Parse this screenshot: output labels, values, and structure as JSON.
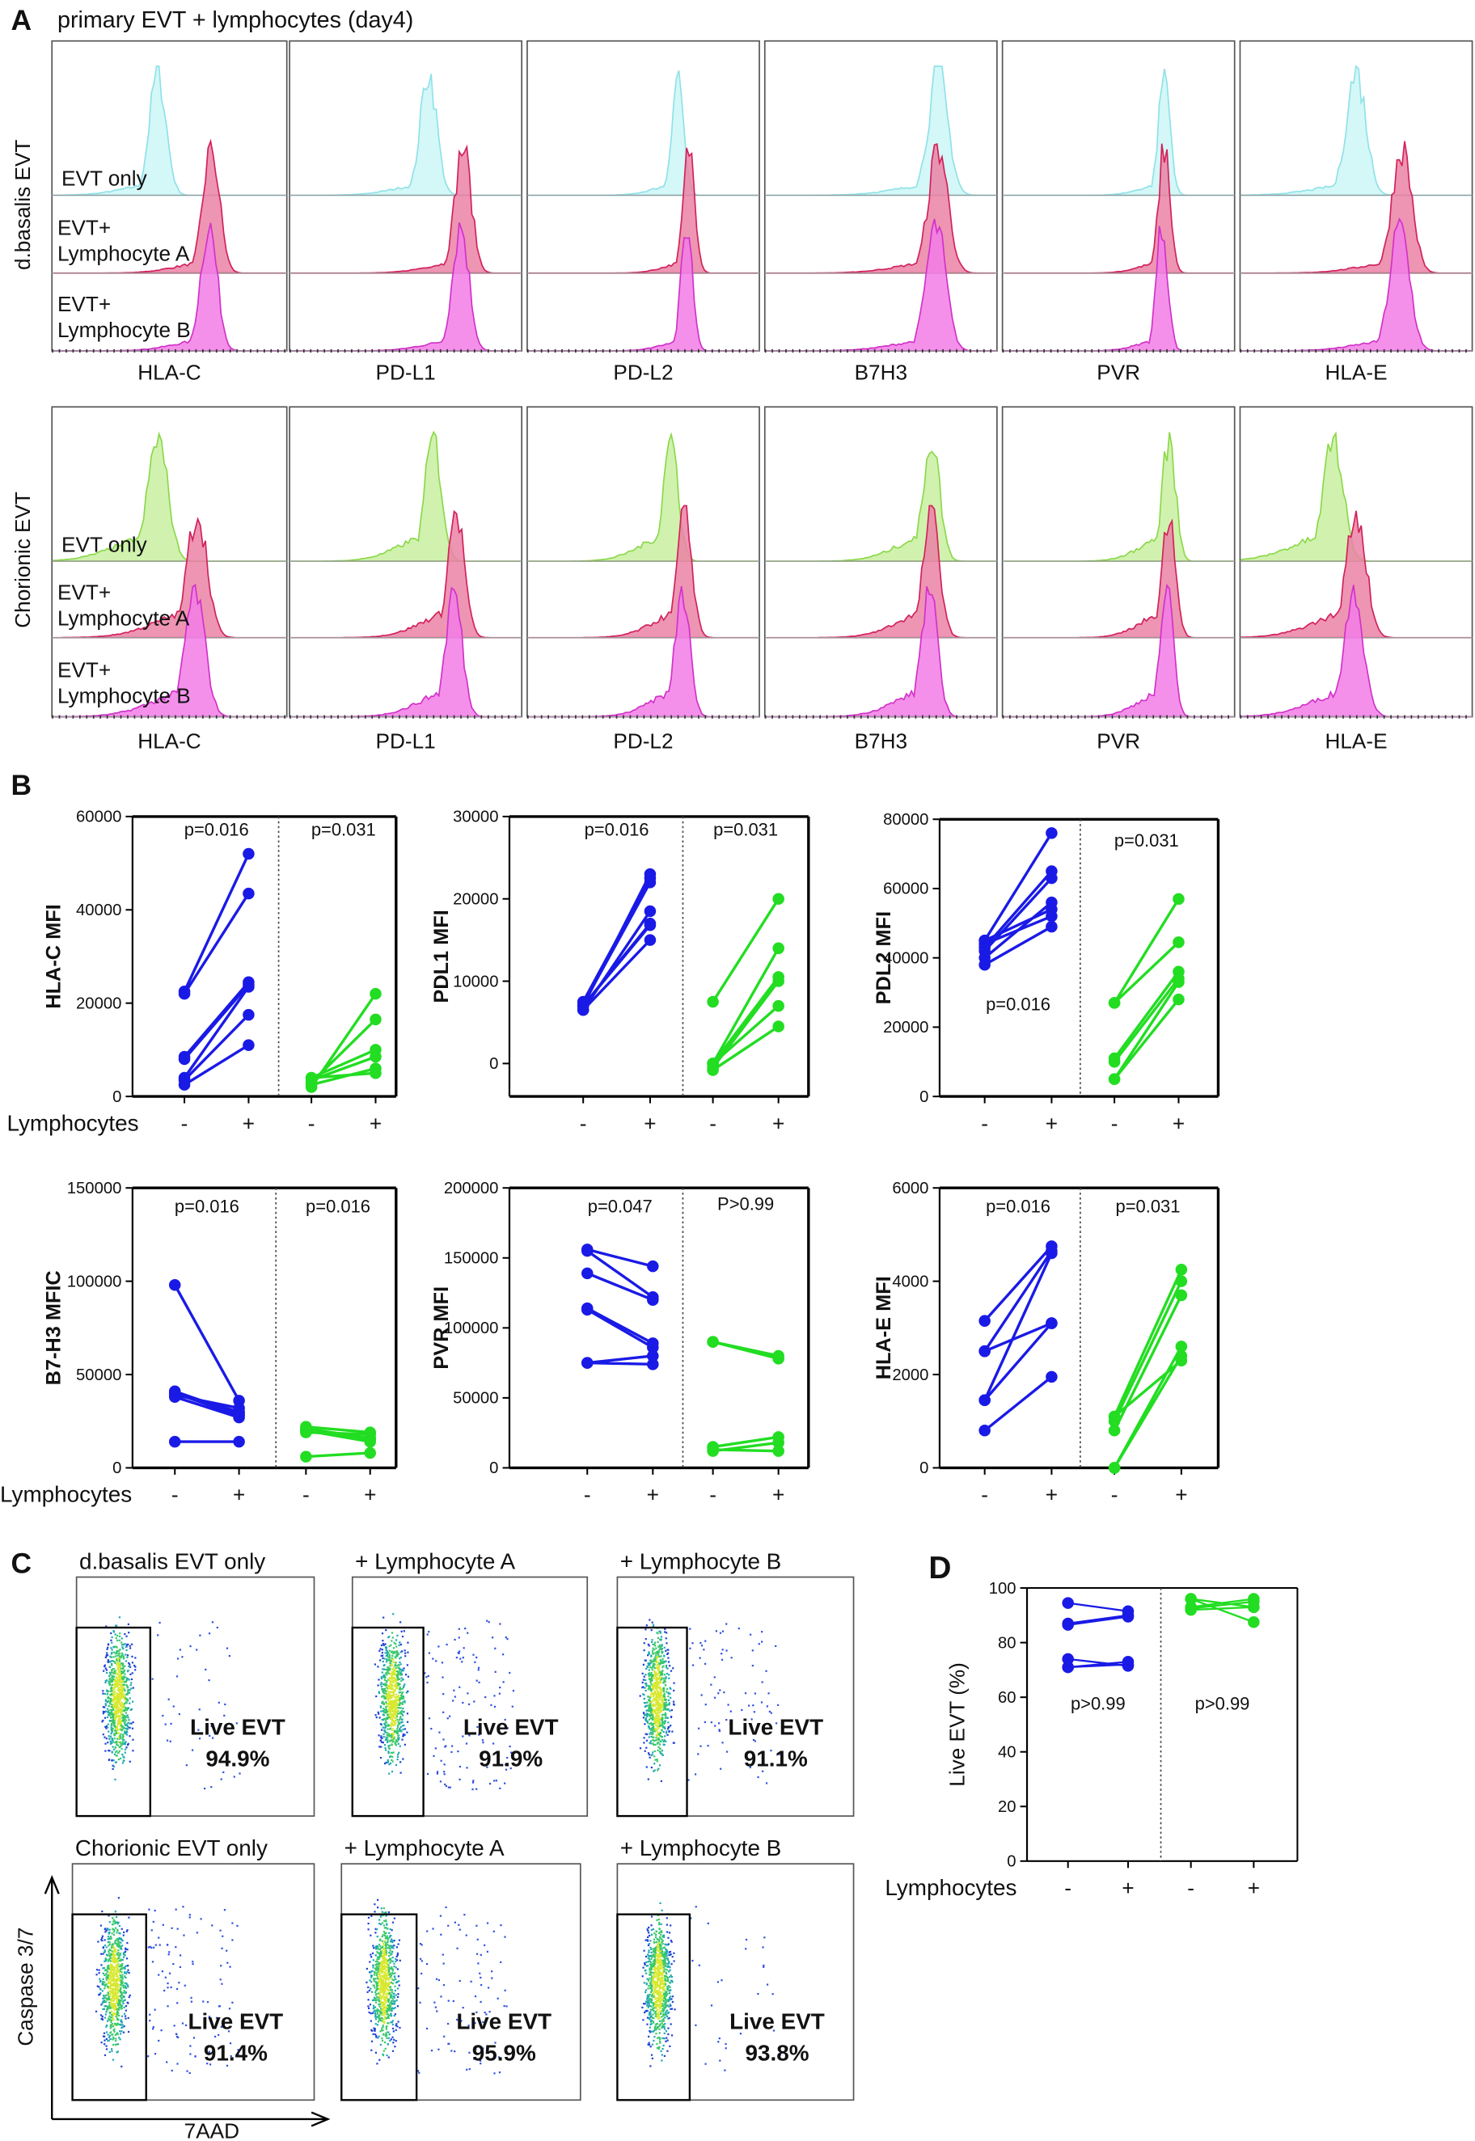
{
  "panel_labels": {
    "a": "A",
    "b": "B",
    "c": "C",
    "d": "D"
  },
  "panel_a": {
    "title": "primary EVT + lymphocytes (day4)",
    "rows": [
      {
        "label": "d.basalis EVT",
        "conditions": [
          [
            "EVT only"
          ],
          [
            "EVT+",
            "Lymphocyte A"
          ],
          [
            "EVT+",
            "Lymphocyte B"
          ]
        ],
        "markers": [
          "HLA-C",
          "PD-L1",
          "PD-L2",
          "B7H3",
          "PVR",
          "HLA-E"
        ]
      },
      {
        "label": "Chorionic EVT",
        "conditions": [
          [
            "EVT only"
          ],
          [
            "EVT+",
            "Lymphocyte A"
          ],
          [
            "EVT+",
            "Lymphocyte B"
          ]
        ],
        "markers": [
          "HLA-C",
          "PD-L1",
          "PD-L2",
          "B7H3",
          "PVR",
          "HLA-E"
        ]
      }
    ]
  },
  "chart_data": [
    {
      "type": "line",
      "ylabel": "HLA-C MFI",
      "xlabel": "Lymphocytes",
      "categories": [
        "-",
        "+",
        "-",
        "+"
      ],
      "ylim": [
        0,
        60000
      ],
      "yticks": [
        0,
        20000,
        40000,
        60000
      ],
      "annotations": [
        "p=0.016",
        "p=0.031"
      ],
      "groups": [
        {
          "color": "#1a1ae6",
          "values": [
            [
              22500,
              52000
            ],
            [
              22000,
              43500
            ],
            [
              8500,
              24500
            ],
            [
              8000,
              24000
            ],
            [
              4000,
              23500
            ],
            [
              3500,
              17500
            ],
            [
              2500,
              11000
            ]
          ]
        },
        {
          "color": "#22dd22",
          "values": [
            [
              2000,
              22000
            ],
            [
              3000,
              16500
            ],
            [
              4000,
              10000
            ],
            [
              3500,
              8500
            ],
            [
              2500,
              6000
            ],
            [
              4000,
              5000
            ]
          ]
        }
      ]
    },
    {
      "type": "line",
      "ylabel": "PDL1 MFI",
      "categories": [
        "-",
        "+",
        "-",
        "+"
      ],
      "ylim": [
        -4000,
        30000
      ],
      "yticks": [
        0,
        10000,
        20000,
        30000
      ],
      "annotations": [
        "p=0.016",
        "p=0.031"
      ],
      "groups": [
        {
          "color": "#1a1ae6",
          "values": [
            [
              7500,
              22500
            ],
            [
              7000,
              23000
            ],
            [
              7200,
              22000
            ],
            [
              6500,
              18500
            ],
            [
              7000,
              17000
            ],
            [
              7000,
              16800
            ],
            [
              6500,
              15000
            ]
          ]
        },
        {
          "color": "#22dd22",
          "values": [
            [
              7500,
              20000
            ],
            [
              0,
              14000
            ],
            [
              0,
              10500
            ],
            [
              -500,
              10000
            ],
            [
              0,
              7000
            ],
            [
              -800,
              4500
            ]
          ]
        }
      ]
    },
    {
      "type": "line",
      "ylabel": "PDL2 MFI",
      "categories": [
        "-",
        "+",
        "-",
        "+"
      ],
      "ylim": [
        0,
        80000
      ],
      "yticks": [
        0,
        20000,
        40000,
        60000,
        80000
      ],
      "annotations": [
        "p=0.016",
        "p=0.031"
      ],
      "groups": [
        {
          "color": "#1a1ae6",
          "values": [
            [
              45000,
              76000
            ],
            [
              43000,
              65000
            ],
            [
              42000,
              63000
            ],
            [
              40000,
              56000
            ],
            [
              45000,
              54000
            ],
            [
              44000,
              52000
            ],
            [
              38000,
              49000
            ]
          ]
        },
        {
          "color": "#22dd22",
          "values": [
            [
              27000,
              57000
            ],
            [
              27000,
              44500
            ],
            [
              11000,
              36000
            ],
            [
              10000,
              34000
            ],
            [
              5000,
              33000
            ],
            [
              5000,
              28000
            ]
          ]
        }
      ]
    },
    {
      "type": "line",
      "ylabel": "B7-H3 MFIC",
      "xlabel": "Lymphocytes",
      "categories": [
        "-",
        "+",
        "-",
        "+"
      ],
      "ylim": [
        0,
        150000
      ],
      "yticks": [
        0,
        50000,
        100000,
        150000
      ],
      "annotations": [
        "p=0.016",
        "p=0.016"
      ],
      "groups": [
        {
          "color": "#1a1ae6",
          "values": [
            [
              98000,
              36000
            ],
            [
              41000,
              29000
            ],
            [
              40000,
              30000
            ],
            [
              40000,
              28000
            ],
            [
              39000,
              32000
            ],
            [
              38000,
              27000
            ],
            [
              14000,
              14000
            ]
          ]
        },
        {
          "color": "#22dd22",
          "values": [
            [
              22000,
              19000
            ],
            [
              21000,
              16000
            ],
            [
              20000,
              14000
            ],
            [
              20000,
              15000
            ],
            [
              19000,
              18000
            ],
            [
              6000,
              8000
            ]
          ]
        }
      ]
    },
    {
      "type": "line",
      "ylabel": "PVR MFI",
      "categories": [
        "-",
        "+",
        "-",
        "+"
      ],
      "ylim": [
        0,
        200000
      ],
      "yticks": [
        0,
        50000,
        100000,
        150000,
        200000
      ],
      "annotations": [
        "p=0.047",
        "P>0.99"
      ],
      "groups": [
        {
          "color": "#1a1ae6",
          "values": [
            [
              156000,
              144000
            ],
            [
              155000,
              122000
            ],
            [
              139000,
              120000
            ],
            [
              114000,
              89000
            ],
            [
              113000,
              86000
            ],
            [
              75000,
              80000
            ],
            [
              75000,
              74000
            ]
          ]
        },
        {
          "color": "#22dd22",
          "values": [
            [
              90000,
              80000
            ],
            [
              90000,
              78000
            ],
            [
              15000,
              22000
            ],
            [
              12000,
              18000
            ],
            [
              13000,
              12000
            ]
          ]
        }
      ]
    },
    {
      "type": "line",
      "ylabel": "HLA-E MFI",
      "categories": [
        "-",
        "+",
        "-",
        "+"
      ],
      "ylim": [
        0,
        6000
      ],
      "yticks": [
        0,
        2000,
        4000,
        6000
      ],
      "annotations": [
        "p=0.016",
        "p=0.031"
      ],
      "groups": [
        {
          "color": "#1a1ae6",
          "values": [
            [
              3150,
              4750
            ],
            [
              2500,
              4650
            ],
            [
              1450,
              4600
            ],
            [
              2500,
              3100
            ],
            [
              1450,
              3100
            ],
            [
              800,
              1950
            ]
          ]
        },
        {
          "color": "#22dd22",
          "values": [
            [
              1100,
              4250
            ],
            [
              1000,
              4000
            ],
            [
              800,
              3700
            ],
            [
              0,
              2600
            ],
            [
              0,
              2400
            ],
            [
              1100,
              2300
            ]
          ]
        }
      ]
    },
    {
      "type": "line",
      "ylabel": "Live EVT (%)",
      "xlabel": "Lymphocytes",
      "categories": [
        "-",
        "+",
        "-",
        "+"
      ],
      "ylim": [
        0,
        100
      ],
      "yticks": [
        0,
        20,
        40,
        60,
        80,
        100
      ],
      "annotations": [
        "p>0.99",
        "p>0.99"
      ],
      "groups": [
        {
          "color": "#1a1ae6",
          "values": [
            [
              94.5,
              91.5
            ],
            [
              86.5,
              89.5
            ],
            [
              87,
              90
            ],
            [
              74,
              71.5
            ],
            [
              71,
              73
            ],
            [
              71,
              72
            ]
          ]
        },
        {
          "color": "#22dd22",
          "values": [
            [
              96,
              93
            ],
            [
              92.5,
              95
            ],
            [
              93,
              96
            ],
            [
              96,
              87.5
            ],
            [
              92,
              93
            ]
          ]
        }
      ]
    }
  ],
  "panel_c": {
    "y_axis": "Caspase 3/7",
    "x_axis": "7AAD",
    "plots": [
      {
        "title": "d.basalis EVT only",
        "gate": "Live EVT",
        "percent": "94.9%"
      },
      {
        "title": "+  Lymphocyte A",
        "gate": "Live EVT",
        "percent": "91.9%"
      },
      {
        "title": "+ Lymphocyte B",
        "gate": "Live EVT",
        "percent": "91.1%"
      },
      {
        "title": "Chorionic EVT only",
        "gate": "Live EVT",
        "percent": "91.4%"
      },
      {
        "title": "+  Lymphocyte A",
        "gate": "Live EVT",
        "percent": "95.9%"
      },
      {
        "title": "+ Lymphocyte B",
        "gate": "Live EVT",
        "percent": "93.8%"
      }
    ]
  }
}
